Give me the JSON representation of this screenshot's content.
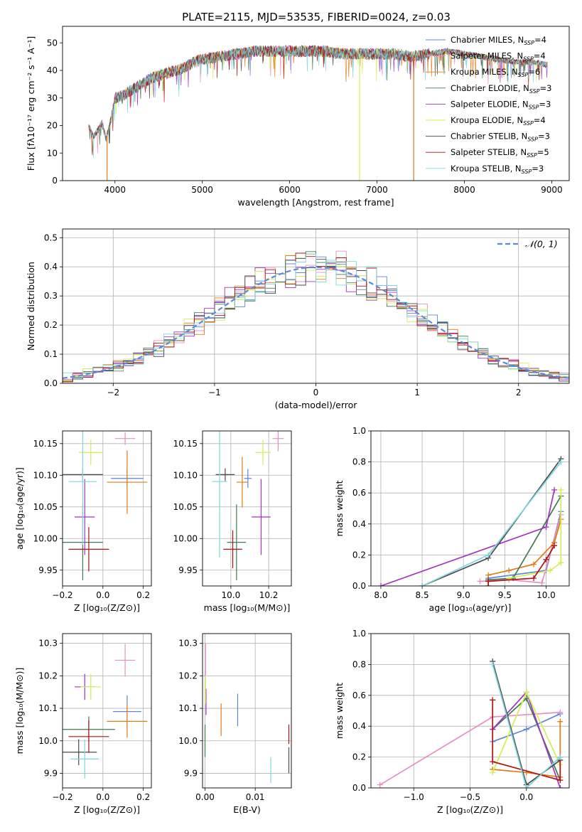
{
  "figure_title": "PLATE=2115, MJD=53535, FIBERID=0024, z=0.03",
  "colors": {
    "Chabrier MILES": "#5f84d8",
    "Salpeter MILES": "#e58fc4",
    "Kroupa MILES": "#e07b16",
    "Chabrier ELODIE": "#3f7a50",
    "Salpeter ELODIE": "#a233c2",
    "Kroupa ELODIE": "#d5ee52",
    "Chabrier STELIB": "#4a4a4a",
    "Salpeter STELIB": "#b01212",
    "Kroupa STELIB": "#7fd6e0",
    "normal": "#5b8bd6"
  },
  "chart_data": [
    {
      "id": "spectrum",
      "type": "line",
      "xlabel": "wavelength [Angstrom, rest frame]",
      "ylabel": "Flux [fλ10⁻¹⁷ erg cm⁻² s⁻¹ A⁻¹]",
      "xlim": [
        3400,
        9200
      ],
      "ylim": [
        0,
        56
      ],
      "xticks": [
        "4000",
        "5000",
        "6000",
        "7000",
        "8000",
        "9000"
      ],
      "yticks": [
        "0",
        "10",
        "20",
        "30",
        "40",
        "50"
      ],
      "continuum": {
        "x": [
          3700,
          3750,
          3800,
          3850,
          3900,
          3950,
          4000,
          4100,
          4200,
          4300,
          4400,
          4500,
          4600,
          4700,
          4800,
          4900,
          5000,
          5200,
          5400,
          5600,
          5800,
          6000,
          6200,
          6400,
          6600,
          6800,
          7000,
          7200,
          7400,
          7600,
          7800,
          8000,
          8200,
          8400,
          8600,
          8800,
          8950
        ],
        "y": [
          20,
          16,
          18,
          21,
          15,
          22,
          30,
          31,
          33,
          35,
          37,
          38,
          39,
          40,
          41,
          43,
          44,
          45,
          46,
          47,
          47,
          47,
          47,
          47,
          46,
          46,
          46,
          46,
          45,
          46,
          47,
          46,
          45,
          44,
          43,
          43,
          42
        ]
      },
      "series": [
        {
          "name": "Chabrier MILES, N$_{SSP}$=4",
          "label_main": "Chabrier MILES, N",
          "label_sub": "SSP",
          "label_tail": "=4"
        },
        {
          "name": "Salpeter MILES, N$_{SSP}$=4",
          "label_main": "Salpeter MILES, N",
          "label_sub": "SSP",
          "label_tail": "=4"
        },
        {
          "name": "Kroupa MILES, N$_{SSP}$=6",
          "label_main": "Kroupa MILES, N",
          "label_sub": "SSP",
          "label_tail": "=6"
        },
        {
          "name": "Chabrier ELODIE, N$_{SSP}$=3",
          "label_main": "Chabrier ELODIE, N",
          "label_sub": "SSP",
          "label_tail": "=3"
        },
        {
          "name": "Salpeter ELODIE, N$_{SSP}$=3",
          "label_main": "Salpeter ELODIE, N",
          "label_sub": "SSP",
          "label_tail": "=3"
        },
        {
          "name": "Kroupa ELODIE, N$_{SSP}$=4",
          "label_main": "Kroupa ELODIE, N",
          "label_sub": "SSP",
          "label_tail": "=4"
        },
        {
          "name": "Chabrier STELIB, N$_{SSP}$=3",
          "label_main": "Chabrier STELIB, N",
          "label_sub": "SSP",
          "label_tail": "=3"
        },
        {
          "name": "Salpeter STELIB, N$_{SSP}$=5",
          "label_main": "Salpeter STELIB, N",
          "label_sub": "SSP",
          "label_tail": "=5"
        },
        {
          "name": "Kroupa STELIB, N$_{SSP}$=3",
          "label_main": "Kroupa STELIB, N",
          "label_sub": "SSP",
          "label_tail": "=3"
        }
      ],
      "dropouts": [
        {
          "x": 3910,
          "series": "Kroupa MILES"
        },
        {
          "x": 6800,
          "series": "Kroupa ELODIE"
        },
        {
          "x": 7420,
          "series": "Kroupa MILES"
        }
      ],
      "legend_loc": "upper right"
    },
    {
      "id": "residuals",
      "type": "histogram",
      "xlabel": "(data-model)/error",
      "ylabel": "Normed distribution",
      "xlim": [
        -2.5,
        2.5
      ],
      "ylim": [
        0,
        0.53
      ],
      "xticks": [
        "−2",
        "−1",
        "0",
        "1",
        "2"
      ],
      "yticks": [
        "0.0",
        "0.1",
        "0.2",
        "0.3",
        "0.4",
        "0.5"
      ],
      "bin_width": 0.1,
      "legend": "𝒩(0, 1)",
      "grid": true
    },
    {
      "id": "age-vs-Z",
      "type": "errorbar",
      "xlabel": "Z [log₁₀(Z/Z⊙)]",
      "ylabel": "age  [log₁₀(age/yr)]",
      "xlim": [
        -0.2,
        0.24
      ],
      "ylim": [
        9.925,
        10.17
      ],
      "xticks": [
        "−0.2",
        "0.0",
        "0.2"
      ],
      "yticks": [
        "9.95",
        "10.00",
        "10.05",
        "10.10",
        "10.15"
      ],
      "points": [
        {
          "series": "Chabrier MILES",
          "x": 0.12,
          "y": 10.095,
          "xerr": 0.08,
          "yerr": 0.015
        },
        {
          "series": "Salpeter MILES",
          "x": 0.11,
          "y": 10.158,
          "xerr": 0.05,
          "yerr": 0.01
        },
        {
          "series": "Kroupa MILES",
          "x": 0.12,
          "y": 10.089,
          "xerr": 0.1,
          "yerr": 0.05
        },
        {
          "series": "Chabrier ELODIE",
          "x": -0.1,
          "y": 9.994,
          "xerr": 0.1,
          "yerr": 0.06
        },
        {
          "series": "Salpeter ELODIE",
          "x": -0.09,
          "y": 10.034,
          "xerr": 0.05,
          "yerr": 0.06
        },
        {
          "series": "Kroupa ELODIE",
          "x": -0.06,
          "y": 10.136,
          "xerr": 0.06,
          "yerr": 0.02
        },
        {
          "series": "Chabrier STELIB",
          "x": -0.1,
          "y": 10.101,
          "xerr": 0.1,
          "yerr": 0.01
        },
        {
          "series": "Salpeter STELIB",
          "x": -0.07,
          "y": 9.983,
          "xerr": 0.1,
          "yerr": 0.035
        },
        {
          "series": "Kroupa STELIB",
          "x": -0.1,
          "y": 10.09,
          "xerr": 0.07,
          "yerr": 0.1
        }
      ]
    },
    {
      "id": "age-vs-mass",
      "type": "errorbar",
      "xlabel": "mass [log₁₀(M/M⊙)]",
      "ylabel": "",
      "xlim": [
        9.85,
        10.32
      ],
      "ylim": [
        9.925,
        10.17
      ],
      "xticks": [
        "10.0",
        "10.2"
      ],
      "yticks": [
        "9.95",
        "10.00",
        "10.05",
        "10.10",
        "10.15"
      ],
      "points": [
        {
          "series": "Chabrier MILES",
          "x": 10.09,
          "y": 10.095,
          "xerr": 0.02,
          "yerr": 0.015
        },
        {
          "series": "Salpeter MILES",
          "x": 10.25,
          "y": 10.158,
          "xerr": 0.03,
          "yerr": 0.02
        },
        {
          "series": "Kroupa MILES",
          "x": 10.06,
          "y": 10.089,
          "xerr": 0.03,
          "yerr": 0.04
        },
        {
          "series": "Chabrier ELODIE",
          "x": 10.03,
          "y": 9.994,
          "xerr": 0.05,
          "yerr": 0.06
        },
        {
          "series": "Salpeter ELODIE",
          "x": 10.16,
          "y": 10.034,
          "xerr": 0.05,
          "yerr": 0.06
        },
        {
          "series": "Kroupa ELODIE",
          "x": 10.17,
          "y": 10.136,
          "xerr": 0.04,
          "yerr": 0.02
        },
        {
          "series": "Chabrier STELIB",
          "x": 9.97,
          "y": 10.101,
          "xerr": 0.05,
          "yerr": 0.01
        },
        {
          "series": "Salpeter STELIB",
          "x": 10.01,
          "y": 9.983,
          "xerr": 0.05,
          "yerr": 0.03
        },
        {
          "series": "Kroupa STELIB",
          "x": 9.94,
          "y": 10.09,
          "xerr": 0.04,
          "yerr": 0.12
        }
      ]
    },
    {
      "id": "mass-weight-vs-age",
      "type": "line",
      "xlabel": "age  [log₁₀(age/yr)]",
      "ylabel": "mass weight",
      "xlim": [
        7.88,
        10.28
      ],
      "ylim": [
        0,
        1
      ],
      "xticks": [
        "8.0",
        "8.5",
        "9.0",
        "9.5",
        "10.0"
      ],
      "yticks": [
        "0.0",
        "0.2",
        "0.4",
        "0.6",
        "0.8",
        "1.0"
      ],
      "series": [
        {
          "series": "Chabrier MILES",
          "x": [
            9.3,
            10.0,
            10.18
          ],
          "y": [
            0.05,
            0.1,
            0.48
          ]
        },
        {
          "series": "Salpeter MILES",
          "x": [
            9.2,
            9.55,
            9.95,
            10.18
          ],
          "y": [
            0.03,
            0.04,
            0.02,
            0.46
          ]
        },
        {
          "series": "Kroupa MILES",
          "x": [
            9.3,
            9.55,
            9.85,
            10.1,
            10.18
          ],
          "y": [
            0.07,
            0.1,
            0.14,
            0.28,
            0.43
          ]
        },
        {
          "series": "Chabrier ELODIE",
          "x": [
            9.3,
            9.6,
            10.18
          ],
          "y": [
            0.04,
            0.05,
            0.58
          ]
        },
        {
          "series": "Salpeter ELODIE",
          "x": [
            8.0,
            10.0,
            10.1
          ],
          "y": [
            0.0,
            0.38,
            0.62
          ]
        },
        {
          "series": "Kroupa ELODIE",
          "x": [
            9.55,
            10.05,
            10.18,
            10.18
          ],
          "y": [
            0.05,
            0.1,
            0.15,
            0.62
          ]
        },
        {
          "series": "Chabrier STELIB",
          "x": [
            8.5,
            9.3,
            10.18
          ],
          "y": [
            0.0,
            0.18,
            0.82
          ]
        },
        {
          "series": "Salpeter STELIB",
          "x": [
            9.3,
            9.3,
            9.85,
            10.0,
            10.1
          ],
          "y": [
            0.0,
            0.03,
            0.05,
            0.17,
            0.26
          ]
        },
        {
          "series": "Kroupa STELIB",
          "x": [
            8.5,
            9.3,
            10.18
          ],
          "y": [
            0.0,
            0.2,
            0.8
          ]
        }
      ]
    },
    {
      "id": "mass-vs-Z",
      "type": "errorbar",
      "xlabel": "Z [log₁₀(Z/Z⊙)]",
      "ylabel": "mass [log₁₀(M/M⊙)]",
      "xlim": [
        -0.2,
        0.24
      ],
      "ylim": [
        9.855,
        10.33
      ],
      "xticks": [
        "−0.2",
        "0.0",
        "0.2"
      ],
      "yticks": [
        "9.9",
        "10.0",
        "10.1",
        "10.2",
        "10.3"
      ],
      "points": [
        {
          "series": "Chabrier MILES",
          "x": 0.12,
          "y": 10.09,
          "xerr": 0.07,
          "yerr": 0.05
        },
        {
          "series": "Salpeter MILES",
          "x": 0.11,
          "y": 10.248,
          "xerr": 0.05,
          "yerr": 0.05
        },
        {
          "series": "Kroupa MILES",
          "x": 0.12,
          "y": 10.06,
          "xerr": 0.1,
          "yerr": 0.05
        },
        {
          "series": "Chabrier ELODIE",
          "x": -0.07,
          "y": 10.035,
          "xerr": 0.13,
          "yerr": 0.04
        },
        {
          "series": "Salpeter ELODIE",
          "x": -0.09,
          "y": 10.166,
          "xerr": 0.05,
          "yerr": 0.04
        },
        {
          "series": "Kroupa ELODIE",
          "x": -0.06,
          "y": 10.166,
          "xerr": 0.05,
          "yerr": 0.04
        },
        {
          "series": "Chabrier STELIB",
          "x": -0.12,
          "y": 9.965,
          "xerr": 0.09,
          "yerr": 0.04
        },
        {
          "series": "Salpeter STELIB",
          "x": -0.07,
          "y": 10.013,
          "xerr": 0.1,
          "yerr": 0.05
        },
        {
          "series": "Kroupa STELIB",
          "x": -0.09,
          "y": 9.944,
          "xerr": 0.07,
          "yerr": 0.06
        }
      ]
    },
    {
      "id": "mass-vs-EBV",
      "type": "errorbar",
      "xlabel": "E(B-V)",
      "ylabel": "",
      "xlim": [
        -0.0005,
        0.0172
      ],
      "ylim": [
        9.855,
        10.33
      ],
      "xticks": [
        "0.00",
        "0.01"
      ],
      "yticks": [
        "9.9",
        "10.0",
        "10.1",
        "10.2",
        "10.3"
      ],
      "points": [
        {
          "series": "Chabrier MILES",
          "x": 0.0065,
          "y": 10.095,
          "xerr": 0,
          "yerr": 0.05
        },
        {
          "series": "Salpeter MILES",
          "x": 0.0001,
          "y": 10.25,
          "xerr": 0,
          "yerr": 0.05
        },
        {
          "series": "Kroupa MILES",
          "x": 0.0032,
          "y": 10.065,
          "xerr": 0,
          "yerr": 0.05
        },
        {
          "series": "Chabrier ELODIE",
          "x": 0.0,
          "y": 10.0,
          "xerr": 0,
          "yerr": 0.05
        },
        {
          "series": "Salpeter ELODIE",
          "x": 0.0002,
          "y": 10.12,
          "xerr": 0,
          "yerr": 0.04
        },
        {
          "series": "Kroupa ELODIE",
          "x": 0.0001,
          "y": 10.155,
          "xerr": 0,
          "yerr": 0.04
        },
        {
          "series": "Chabrier STELIB",
          "x": 0.0167,
          "y": 9.94,
          "xerr": 0,
          "yerr": 0.04
        },
        {
          "series": "Salpeter STELIB",
          "x": 0.0167,
          "y": 10.02,
          "xerr": 0,
          "yerr": 0.03
        },
        {
          "series": "Kroupa STELIB",
          "x": 0.0131,
          "y": 9.91,
          "xerr": 0,
          "yerr": 0.04
        }
      ]
    },
    {
      "id": "mass-weight-vs-Z",
      "type": "line",
      "xlabel": "Z [log₁₀(Z/Z⊙)]",
      "ylabel": "mass weight",
      "xlim": [
        -1.38,
        0.38
      ],
      "ylim": [
        0,
        1
      ],
      "xticks": [
        "−1.0",
        "−0.5",
        "0.0"
      ],
      "yticks": [
        "0.0",
        "0.2",
        "0.4",
        "0.6",
        "0.8",
        "1.0"
      ],
      "series": [
        {
          "series": "Chabrier MILES",
          "x": [
            -0.3,
            0.0,
            0.3
          ],
          "y": [
            0.3,
            0.38,
            0.48
          ]
        },
        {
          "series": "Salpeter MILES",
          "x": [
            -1.3,
            -0.3,
            0.3
          ],
          "y": [
            0.02,
            0.46,
            0.49
          ]
        },
        {
          "series": "Kroupa MILES",
          "x": [
            -0.3,
            0.0,
            0.3,
            0.3
          ],
          "y": [
            0.12,
            0.1,
            0.07,
            0.43
          ]
        },
        {
          "series": "Chabrier ELODIE",
          "x": [
            -0.3,
            0.0,
            0.3
          ],
          "y": [
            0.38,
            0.58,
            0.05
          ]
        },
        {
          "series": "Salpeter ELODIE",
          "x": [
            -0.3,
            0.0,
            0.3
          ],
          "y": [
            0.38,
            0.62,
            0.0
          ]
        },
        {
          "series": "Kroupa ELODIE",
          "x": [
            -0.3,
            0.0,
            0.3
          ],
          "y": [
            0.1,
            0.62,
            0.15
          ]
        },
        {
          "series": "Chabrier STELIB",
          "x": [
            -0.3,
            0.0,
            0.3
          ],
          "y": [
            0.82,
            0.02,
            0.18
          ]
        },
        {
          "series": "Salpeter STELIB",
          "x": [
            -0.3,
            -0.3,
            0.3,
            0.3
          ],
          "y": [
            0.57,
            0.17,
            0.05,
            0.2
          ]
        },
        {
          "series": "Kroupa STELIB",
          "x": [
            -0.3,
            0.0,
            0.3
          ],
          "y": [
            0.8,
            0.0,
            0.2
          ]
        }
      ]
    }
  ]
}
